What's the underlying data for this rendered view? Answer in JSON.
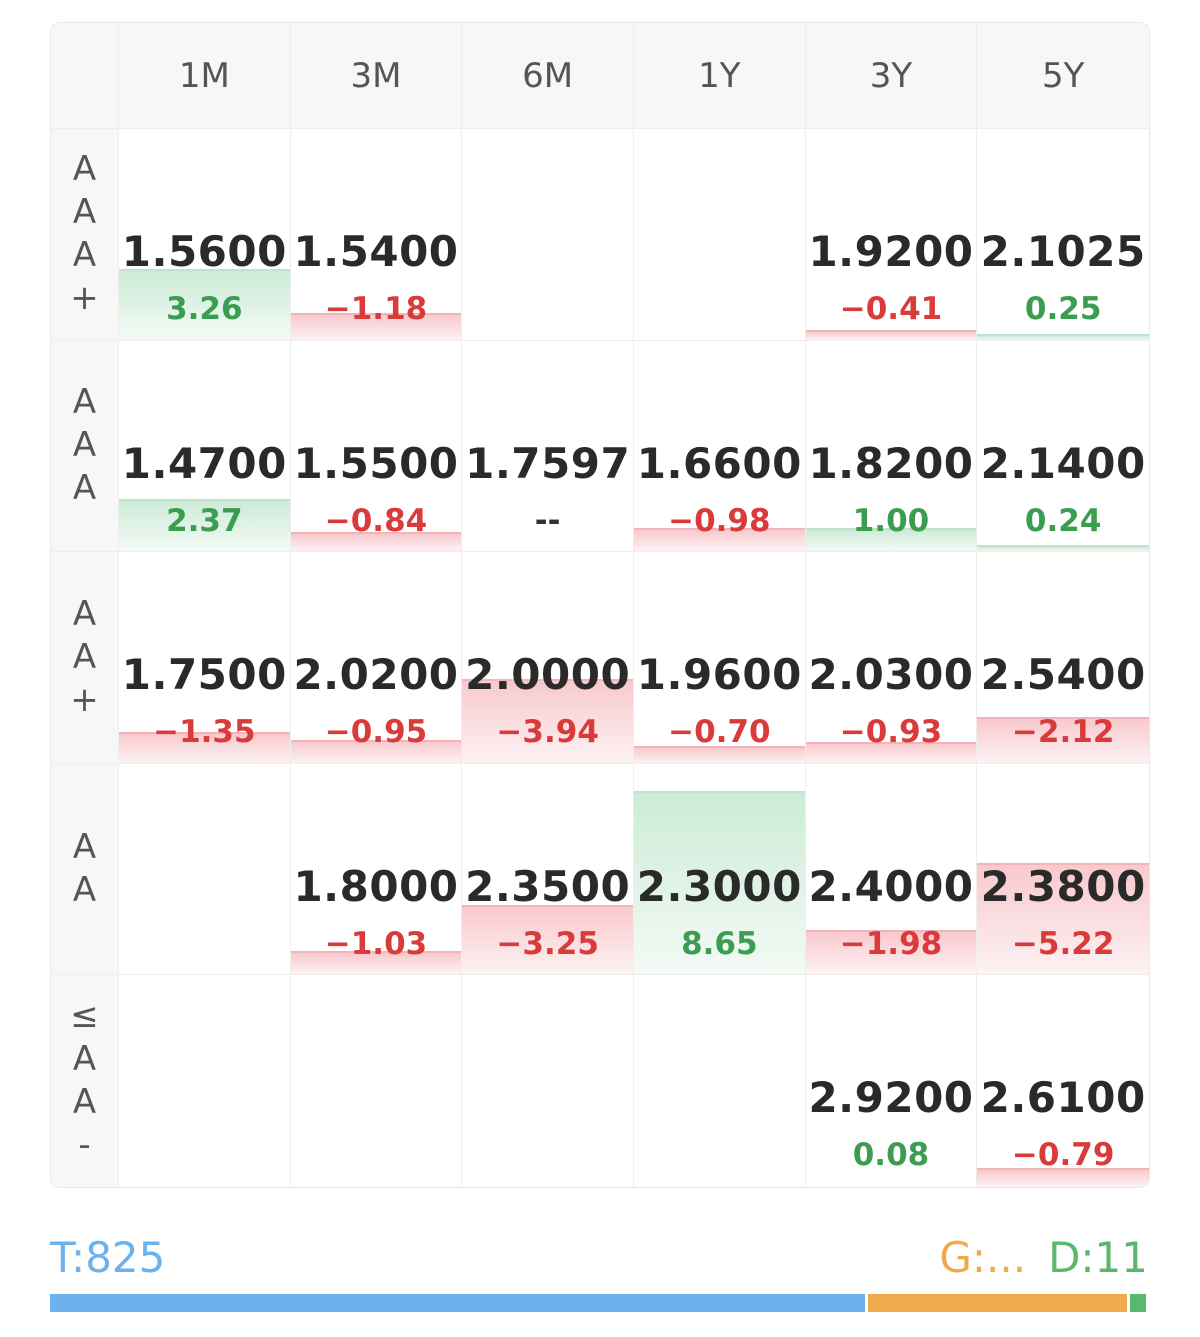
{
  "columns": [
    "1M",
    "3M",
    "6M",
    "1Y",
    "3Y",
    "5Y"
  ],
  "rows": [
    {
      "label": [
        "A",
        "A",
        "A",
        "+"
      ],
      "cells": [
        {
          "rate": "1.5600",
          "change": "3.26",
          "dir": "up",
          "bar": 0.33
        },
        {
          "rate": "1.5400",
          "change": "−1.18",
          "dir": "down",
          "bar": 0.12
        },
        {
          "rate": "",
          "change": "",
          "dir": "none",
          "bar": 0
        },
        {
          "rate": "",
          "change": "",
          "dir": "none",
          "bar": 0
        },
        {
          "rate": "1.9200",
          "change": "−0.41",
          "dir": "down",
          "bar": 0.04
        },
        {
          "rate": "2.1025",
          "change": "0.25",
          "dir": "up",
          "bar": 0.02
        }
      ]
    },
    {
      "label": [
        "A",
        "A",
        "A"
      ],
      "cells": [
        {
          "rate": "1.4700",
          "change": "2.37",
          "dir": "up",
          "bar": 0.24
        },
        {
          "rate": "1.5500",
          "change": "−0.84",
          "dir": "down",
          "bar": 0.08
        },
        {
          "rate": "1.7597",
          "change": "--",
          "dir": "neutral",
          "bar": 0
        },
        {
          "rate": "1.6600",
          "change": "−0.98",
          "dir": "down",
          "bar": 0.1
        },
        {
          "rate": "1.8200",
          "change": "1.00",
          "dir": "up",
          "bar": 0.1
        },
        {
          "rate": "2.1400",
          "change": "0.24",
          "dir": "up",
          "bar": 0.02
        }
      ]
    },
    {
      "label": [
        "A",
        "A",
        "+"
      ],
      "cells": [
        {
          "rate": "1.7500",
          "change": "−1.35",
          "dir": "down",
          "bar": 0.14
        },
        {
          "rate": "2.0200",
          "change": "−0.95",
          "dir": "down",
          "bar": 0.1
        },
        {
          "rate": "2.0000",
          "change": "−3.94",
          "dir": "down",
          "bar": 0.39
        },
        {
          "rate": "1.9600",
          "change": "−0.70",
          "dir": "down",
          "bar": 0.07
        },
        {
          "rate": "2.0300",
          "change": "−0.93",
          "dir": "down",
          "bar": 0.09
        },
        {
          "rate": "2.5400",
          "change": "−2.12",
          "dir": "down",
          "bar": 0.21
        }
      ]
    },
    {
      "label": [
        "A",
        "A"
      ],
      "cells": [
        {
          "rate": "",
          "change": "",
          "dir": "none",
          "bar": 0
        },
        {
          "rate": "1.8000",
          "change": "−1.03",
          "dir": "down",
          "bar": 0.1
        },
        {
          "rate": "2.3500",
          "change": "−3.25",
          "dir": "down",
          "bar": 0.32
        },
        {
          "rate": "2.3000",
          "change": "8.65",
          "dir": "up",
          "bar": 0.86
        },
        {
          "rate": "2.4000",
          "change": "−1.98",
          "dir": "down",
          "bar": 0.2
        },
        {
          "rate": "2.3800",
          "change": "−5.22",
          "dir": "down",
          "bar": 0.52
        }
      ]
    },
    {
      "label": [
        "≤",
        "A",
        "A",
        "-"
      ],
      "cells": [
        {
          "rate": "",
          "change": "",
          "dir": "none",
          "bar": 0
        },
        {
          "rate": "",
          "change": "",
          "dir": "none",
          "bar": 0
        },
        {
          "rate": "",
          "change": "",
          "dir": "none",
          "bar": 0
        },
        {
          "rate": "",
          "change": "",
          "dir": "none",
          "bar": 0
        },
        {
          "rate": "2.9200",
          "change": "0.08",
          "dir": "up",
          "bar": 0
        },
        {
          "rate": "2.6100",
          "change": "−0.79",
          "dir": "down",
          "bar": 0.08
        }
      ]
    }
  ],
  "footer": {
    "total_label": "T:825",
    "g_label": "G:...",
    "d_label": "D:11",
    "t_fraction": 0.745,
    "g_fraction": 0.237,
    "d_fraction": 0.015
  },
  "colors": {
    "up": "#3a9d4f",
    "down": "#d93a3a",
    "t": "#6cb2ec",
    "g": "#f0a94c",
    "d": "#5bb86a"
  }
}
